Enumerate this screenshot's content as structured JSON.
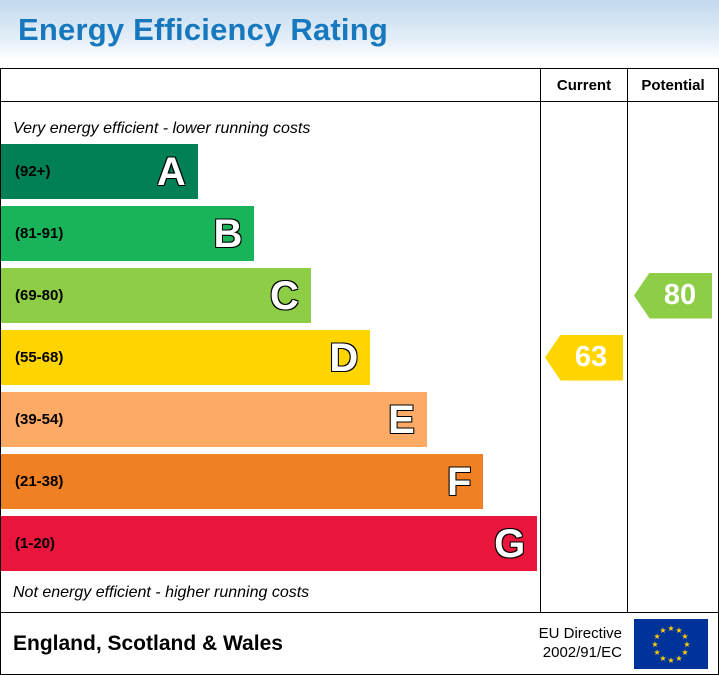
{
  "title": "Energy Efficiency Rating",
  "table": {
    "current_header": "Current",
    "potential_header": "Potential",
    "top_caption": "Very energy efficient - lower running costs",
    "bottom_caption": "Not energy efficient - higher running costs"
  },
  "footer": {
    "region": "England, Scotland & Wales",
    "directive_line1": "EU Directive",
    "directive_line2": "2002/91/EC"
  },
  "theme": {
    "title_color": "#1778be",
    "title_bg": "#c3d9ee",
    "border_color": "#000000",
    "eu_blue": "#003399",
    "eu_star_gold": "#ffcc00"
  },
  "chart_data": {
    "type": "bar",
    "title": "Energy Efficiency Rating",
    "categories": [
      "A",
      "B",
      "C",
      "D",
      "E",
      "F",
      "G"
    ],
    "bands": [
      {
        "letter": "A",
        "range": "(92+)",
        "color": "#008054",
        "width_pct": 36.5
      },
      {
        "letter": "B",
        "range": "(81-91)",
        "color": "#19b459",
        "width_pct": 47
      },
      {
        "letter": "C",
        "range": "(69-80)",
        "color": "#8dce46",
        "width_pct": 57.5
      },
      {
        "letter": "D",
        "range": "(55-68)",
        "color": "#ffd500",
        "width_pct": 68.5
      },
      {
        "letter": "E",
        "range": "(39-54)",
        "color": "#fcaa65",
        "width_pct": 79
      },
      {
        "letter": "F",
        "range": "(21-38)",
        "color": "#ef8023",
        "width_pct": 89.5
      },
      {
        "letter": "G",
        "range": "(1-20)",
        "color": "#e9153b",
        "width_pct": 99.5
      }
    ],
    "current": {
      "value": 63,
      "band": "D",
      "color": "#ffd500"
    },
    "potential": {
      "value": 80,
      "band": "C",
      "color": "#8dce46"
    }
  }
}
